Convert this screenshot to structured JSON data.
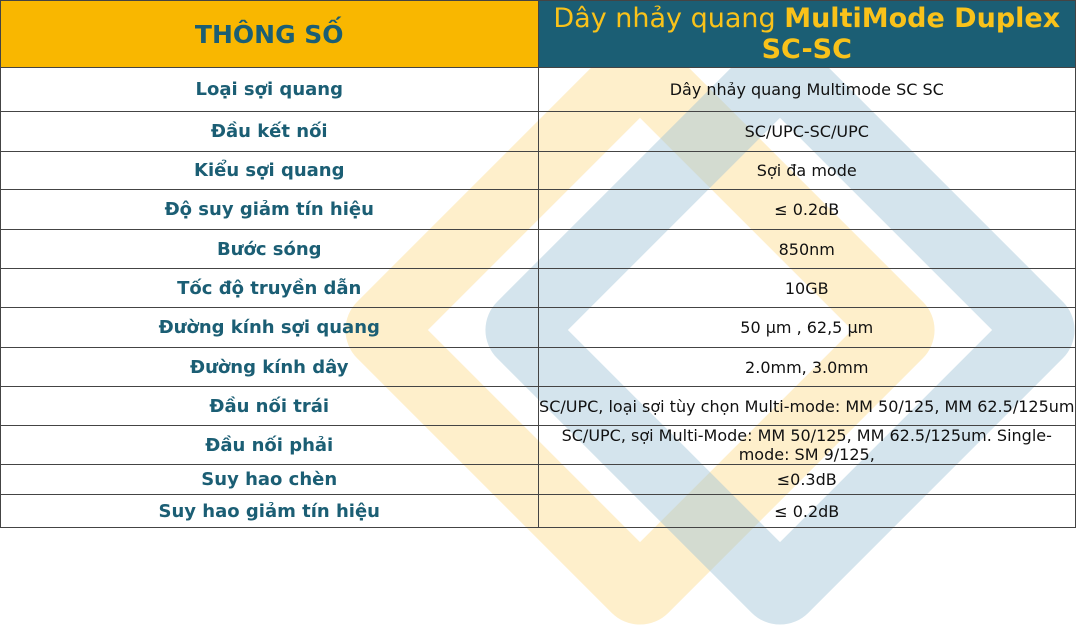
{
  "header": {
    "left": "THÔNG SỐ",
    "title_prefix": "Dây nhảy quang ",
    "title_bold": "MultiMode Duplex SC-SC"
  },
  "rows": [
    {
      "label": "Loại sợi quang",
      "value": "Dây nhảy quang Multimode SC SC"
    },
    {
      "label": "Đầu kết nối",
      "value": "SC/UPC-SC/UPC"
    },
    {
      "label": "Kiểu sợi quang",
      "value": "Sợi đa mode"
    },
    {
      "label": "Độ suy giảm tín hiệu",
      "value": "≤ 0.2dB"
    },
    {
      "label": "Bước sóng",
      "value": "850nm"
    },
    {
      "label": "Tốc độ truyền dẫn",
      "value": "10GB"
    },
    {
      "label": "Đường kính sợi quang",
      "value": "50 µm , 62,5 µm"
    },
    {
      "label": "Đường kính dây",
      "value": "2.0mm, 3.0mm"
    },
    {
      "label": "Đầu nối trái",
      "value": "SC/UPC, loại sợi tùy chọn Multi-mode: MM 50/125, MM 62.5/125um"
    },
    {
      "label": "Đầu nối phải",
      "value": "SC/UPC, sợi Multi-Mode: MM 50/125, MM 62.5/125um. Single-mode: SM 9/125,"
    },
    {
      "label": "Suy hao chèn",
      "value": "≤0.3dB"
    },
    {
      "label": "Suy hao giảm tín hiệu",
      "value": "≤ 0.2dB"
    }
  ],
  "colors": {
    "gold": "#f9b700",
    "teal": "#1b5e74"
  }
}
